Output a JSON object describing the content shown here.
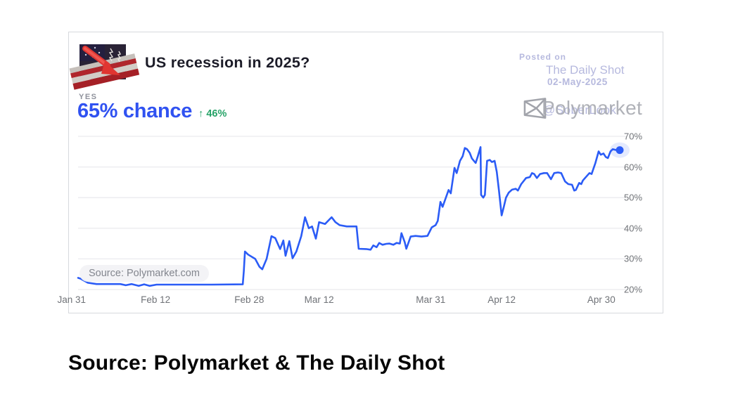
{
  "card": {
    "market": {
      "icon": "us-flag-recession-arrow",
      "title": "US recession in 2025?",
      "outcome_label": "YES",
      "chance": "65% chance",
      "change_arrow": "↑",
      "change": "46%"
    },
    "watermark": {
      "posted_on": "Posted on",
      "site": "The Daily Shot",
      "date": "02-May-2025",
      "handle": "@SoberLook",
      "brand": "Polymarket",
      "brand_logo": "polymarket-logo"
    },
    "source_badge": "Source: Polymarket.com"
  },
  "caption": "Source: Polymarket & The Daily Shot",
  "chart_data": {
    "type": "line",
    "title": "US recession in 2025?",
    "series_name": "Yes probability",
    "unit": "%",
    "ylim": [
      20,
      70
    ],
    "grid": true,
    "legend": "none",
    "colors": {
      "line": "#2b5cf6",
      "dot": "#2b5cf6",
      "halo": "rgba(43,92,246,0.13)",
      "grid": "#ededf0",
      "axis_text": "#6f7277",
      "chance_blue": "#3052f1",
      "change_green": "#27a368",
      "watermark_lavender": "#b6b9de",
      "watermark_gray": "#a8aab1"
    },
    "yticks": [
      {
        "value": 70,
        "label": "70%"
      },
      {
        "value": 60,
        "label": "60%"
      },
      {
        "value": 50,
        "label": "50%"
      },
      {
        "value": 40,
        "label": "40%"
      },
      {
        "value": 30,
        "label": "30%"
      },
      {
        "value": 20,
        "label": "20%"
      }
    ],
    "xticks": [
      {
        "pos": -0.012,
        "label": "Jan 31"
      },
      {
        "pos": 0.143,
        "label": "Feb 12"
      },
      {
        "pos": 0.316,
        "label": "Feb 28"
      },
      {
        "pos": 0.445,
        "label": "Mar 12"
      },
      {
        "pos": 0.651,
        "label": "Mar 31"
      },
      {
        "pos": 0.782,
        "label": "Apr 12"
      },
      {
        "pos": 0.966,
        "label": "Apr 30"
      }
    ],
    "current_value": 65,
    "points": [
      [
        0.0,
        23.8
      ],
      [
        0.005,
        23.5
      ],
      [
        0.01,
        23.0
      ],
      [
        0.018,
        22.2
      ],
      [
        0.034,
        21.8
      ],
      [
        0.078,
        21.8
      ],
      [
        0.088,
        21.4
      ],
      [
        0.099,
        21.8
      ],
      [
        0.112,
        21.2
      ],
      [
        0.122,
        21.7
      ],
      [
        0.132,
        21.2
      ],
      [
        0.145,
        21.6
      ],
      [
        0.179,
        21.6
      ],
      [
        0.247,
        21.6
      ],
      [
        0.304,
        21.7
      ],
      [
        0.306,
        26.0
      ],
      [
        0.308,
        32.4
      ],
      [
        0.314,
        31.4
      ],
      [
        0.327,
        30.0
      ],
      [
        0.335,
        27.4
      ],
      [
        0.34,
        26.6
      ],
      [
        0.348,
        30.0
      ],
      [
        0.357,
        37.4
      ],
      [
        0.364,
        36.8
      ],
      [
        0.373,
        33.2
      ],
      [
        0.379,
        36.0
      ],
      [
        0.383,
        31.0
      ],
      [
        0.39,
        35.8
      ],
      [
        0.396,
        30.2
      ],
      [
        0.403,
        32.4
      ],
      [
        0.412,
        37.4
      ],
      [
        0.419,
        43.6
      ],
      [
        0.426,
        40.0
      ],
      [
        0.432,
        40.6
      ],
      [
        0.439,
        36.6
      ],
      [
        0.445,
        42.0
      ],
      [
        0.456,
        41.4
      ],
      [
        0.468,
        43.6
      ],
      [
        0.475,
        42.0
      ],
      [
        0.483,
        41.0
      ],
      [
        0.496,
        40.6
      ],
      [
        0.514,
        40.6
      ],
      [
        0.518,
        33.3
      ],
      [
        0.532,
        33.2
      ],
      [
        0.54,
        33.0
      ],
      [
        0.545,
        34.4
      ],
      [
        0.551,
        33.8
      ],
      [
        0.556,
        35.2
      ],
      [
        0.562,
        34.6
      ],
      [
        0.569,
        34.9
      ],
      [
        0.575,
        35.0
      ],
      [
        0.582,
        34.6
      ],
      [
        0.588,
        35.2
      ],
      [
        0.594,
        35.0
      ],
      [
        0.597,
        38.4
      ],
      [
        0.603,
        35.5
      ],
      [
        0.606,
        33.3
      ],
      [
        0.614,
        37.3
      ],
      [
        0.623,
        37.5
      ],
      [
        0.634,
        37.3
      ],
      [
        0.645,
        37.5
      ],
      [
        0.653,
        40.3
      ],
      [
        0.66,
        41.0
      ],
      [
        0.664,
        42.4
      ],
      [
        0.669,
        48.6
      ],
      [
        0.673,
        47.0
      ],
      [
        0.684,
        52.5
      ],
      [
        0.688,
        51.4
      ],
      [
        0.695,
        59.7
      ],
      [
        0.699,
        58.0
      ],
      [
        0.705,
        62.0
      ],
      [
        0.71,
        63.5
      ],
      [
        0.714,
        66.2
      ],
      [
        0.718,
        65.8
      ],
      [
        0.723,
        64.6
      ],
      [
        0.727,
        62.8
      ],
      [
        0.734,
        61.3
      ],
      [
        0.738,
        63.5
      ],
      [
        0.743,
        66.5
      ],
      [
        0.744,
        50.9
      ],
      [
        0.748,
        50.0
      ],
      [
        0.751,
        50.9
      ],
      [
        0.755,
        62.0
      ],
      [
        0.76,
        62.3
      ],
      [
        0.764,
        61.6
      ],
      [
        0.769,
        62.0
      ],
      [
        0.773,
        58.4
      ],
      [
        0.777,
        52.3
      ],
      [
        0.782,
        44.2
      ],
      [
        0.786,
        47.0
      ],
      [
        0.79,
        50.0
      ],
      [
        0.795,
        51.6
      ],
      [
        0.801,
        52.6
      ],
      [
        0.808,
        52.9
      ],
      [
        0.812,
        52.3
      ],
      [
        0.818,
        54.4
      ],
      [
        0.827,
        56.4
      ],
      [
        0.834,
        56.7
      ],
      [
        0.838,
        58.0
      ],
      [
        0.842,
        57.7
      ],
      [
        0.847,
        56.4
      ],
      [
        0.853,
        57.7
      ],
      [
        0.86,
        58.0
      ],
      [
        0.866,
        58.0
      ],
      [
        0.873,
        56.0
      ],
      [
        0.879,
        58.0
      ],
      [
        0.886,
        58.2
      ],
      [
        0.892,
        58.0
      ],
      [
        0.899,
        55.3
      ],
      [
        0.905,
        54.4
      ],
      [
        0.912,
        54.2
      ],
      [
        0.916,
        52.3
      ],
      [
        0.919,
        52.5
      ],
      [
        0.925,
        54.8
      ],
      [
        0.929,
        54.4
      ],
      [
        0.932,
        55.6
      ],
      [
        0.939,
        57.0
      ],
      [
        0.944,
        58.0
      ],
      [
        0.948,
        57.7
      ],
      [
        0.955,
        61.3
      ],
      [
        0.961,
        65.1
      ],
      [
        0.965,
        64.0
      ],
      [
        0.97,
        64.4
      ],
      [
        0.974,
        63.3
      ],
      [
        0.978,
        62.9
      ],
      [
        0.983,
        65.1
      ],
      [
        0.987,
        65.8
      ],
      [
        0.994,
        65.5
      ],
      [
        1.0,
        65.5
      ]
    ]
  }
}
